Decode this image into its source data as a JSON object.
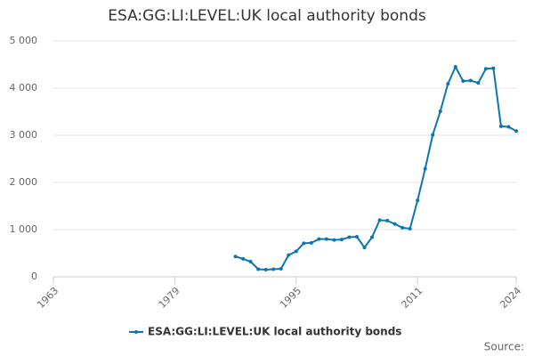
{
  "chart_data": {
    "type": "line",
    "title": "ESA:GG:LI:LEVEL:UK local authority bonds",
    "x": [
      1987,
      1988,
      1989,
      1990,
      1991,
      1992,
      1993,
      1994,
      1995,
      1996,
      1997,
      1998,
      1999,
      2000,
      2001,
      2002,
      2003,
      2004,
      2005,
      2006,
      2007,
      2008,
      2009,
      2010,
      2011,
      2012,
      2013,
      2014,
      2015,
      2016,
      2017,
      2018,
      2019,
      2020,
      2021,
      2022,
      2023,
      2024
    ],
    "series": [
      {
        "name": "ESA:GG:LI:LEVEL:UK local authority bonds",
        "color": "#0d76b0",
        "values": [
          430,
          380,
          320,
          160,
          150,
          160,
          170,
          460,
          540,
          710,
          720,
          800,
          800,
          780,
          790,
          840,
          850,
          620,
          840,
          1200,
          1190,
          1120,
          1040,
          1020,
          1620,
          2290,
          3010,
          3510,
          4090,
          4450,
          4150,
          4160,
          4110,
          4410,
          4420,
          3190,
          3180,
          3090
        ]
      }
    ],
    "xlim": [
      1963,
      2024
    ],
    "xticks": [
      1963,
      1979,
      1995,
      2011,
      2024
    ],
    "ylim": [
      0,
      5000
    ],
    "yticks": [
      0,
      {
        "value": 1000,
        "label": "1 000"
      },
      {
        "value": 2000,
        "label": "2 000"
      },
      {
        "value": 3000,
        "label": "3 000"
      },
      {
        "value": 4000,
        "label": "4 000"
      },
      {
        "value": 5000,
        "label": "5 000"
      }
    ],
    "grid": true,
    "source": "Source:"
  }
}
